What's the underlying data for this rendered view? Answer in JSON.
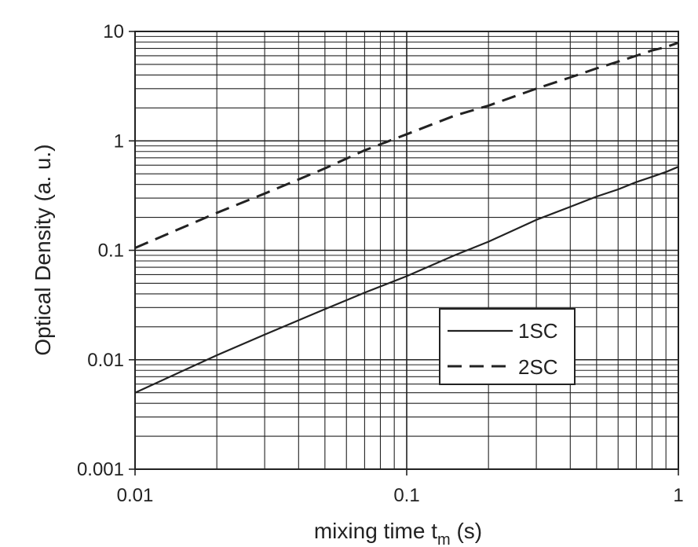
{
  "chart_data": {
    "type": "line",
    "xscale": "log",
    "yscale": "log",
    "xlim": [
      0.01,
      1
    ],
    "ylim": [
      0.001,
      10
    ],
    "grid": true,
    "xlabel": "mixing time t",
    "xlabel_sub": "m",
    "xlabel_suffix": " (s)",
    "ylabel": "Optical Density (a. u.)",
    "xticks": [
      {
        "value": 0.01,
        "label": "0.01"
      },
      {
        "value": 0.1,
        "label": "0.1"
      },
      {
        "value": 1,
        "label": "1"
      }
    ],
    "yticks": [
      {
        "value": 0.001,
        "label": "0.001"
      },
      {
        "value": 0.01,
        "label": "0.01"
      },
      {
        "value": 0.1,
        "label": "0.1"
      },
      {
        "value": 1,
        "label": "1"
      },
      {
        "value": 10,
        "label": "10"
      }
    ],
    "legend_position": "center-right",
    "series": [
      {
        "name": "1SC",
        "style": "solid",
        "x": [
          0.01,
          0.02,
          0.03,
          0.05,
          0.07,
          0.1,
          0.15,
          0.2,
          0.3,
          0.4,
          0.5,
          0.6,
          0.7,
          0.8,
          0.9,
          1.0
        ],
        "y": [
          0.005,
          0.011,
          0.017,
          0.029,
          0.041,
          0.058,
          0.09,
          0.12,
          0.19,
          0.25,
          0.31,
          0.36,
          0.42,
          0.47,
          0.52,
          0.58
        ]
      },
      {
        "name": "2SC",
        "style": "dashed",
        "x": [
          0.01,
          0.02,
          0.03,
          0.05,
          0.07,
          0.1,
          0.15,
          0.2,
          0.3,
          0.4,
          0.5,
          0.6,
          0.7,
          0.8,
          0.9,
          1.0
        ],
        "y": [
          0.105,
          0.22,
          0.33,
          0.56,
          0.82,
          1.15,
          1.7,
          2.1,
          3.0,
          3.8,
          4.6,
          5.3,
          6.0,
          6.7,
          7.2,
          7.9
        ]
      }
    ]
  }
}
